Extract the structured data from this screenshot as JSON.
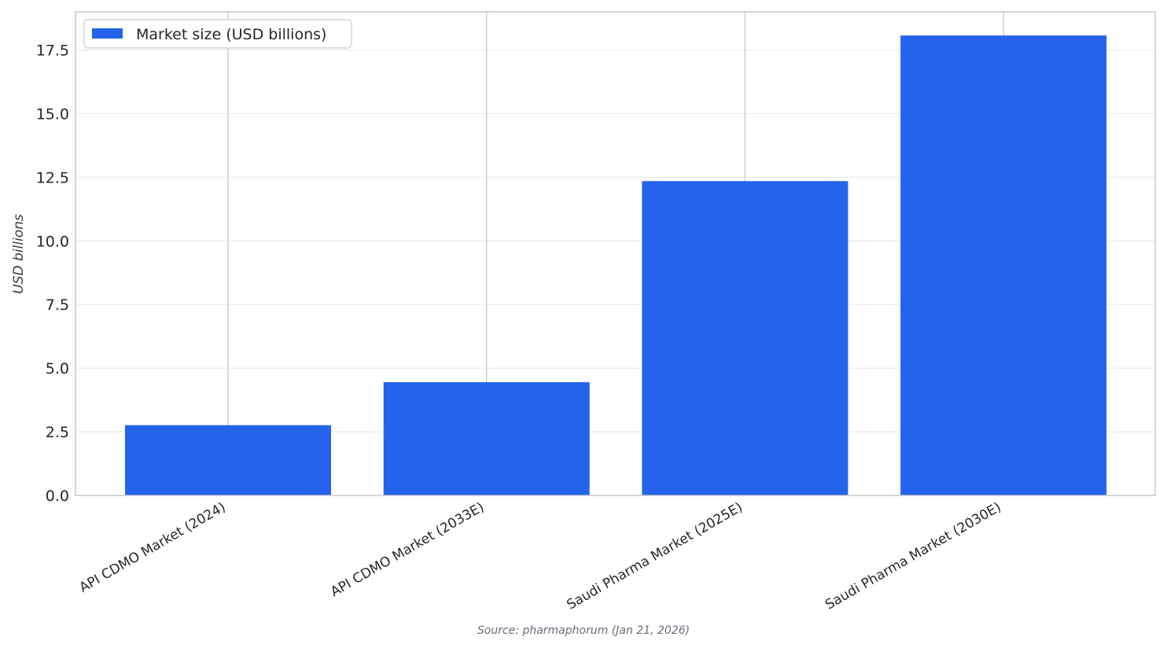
{
  "chart_data": {
    "type": "bar",
    "categories": [
      "API CDMO Market (2024)",
      "API CDMO Market (2033E)",
      "Saudi Pharma Market (2025E)",
      "Saudi Pharma Market (2030E)"
    ],
    "series": [
      {
        "name": "Market size (USD billions)",
        "values": [
          2.76,
          4.45,
          12.35,
          18.07
        ],
        "color": "#2563eb"
      }
    ],
    "title": "",
    "xlabel": "",
    "ylabel": "USD billions",
    "ylim": [
      0,
      19
    ],
    "yticks": [
      0.0,
      2.5,
      5.0,
      7.5,
      10.0,
      12.5,
      15.0,
      17.5
    ],
    "ytick_labels": [
      "0.0",
      "2.5",
      "5.0",
      "7.5",
      "10.0",
      "12.5",
      "15.0",
      "17.5"
    ],
    "grid": true,
    "legend_placement": "top-left",
    "source": "Source: pharmaphorum (Jan 21, 2026)"
  }
}
